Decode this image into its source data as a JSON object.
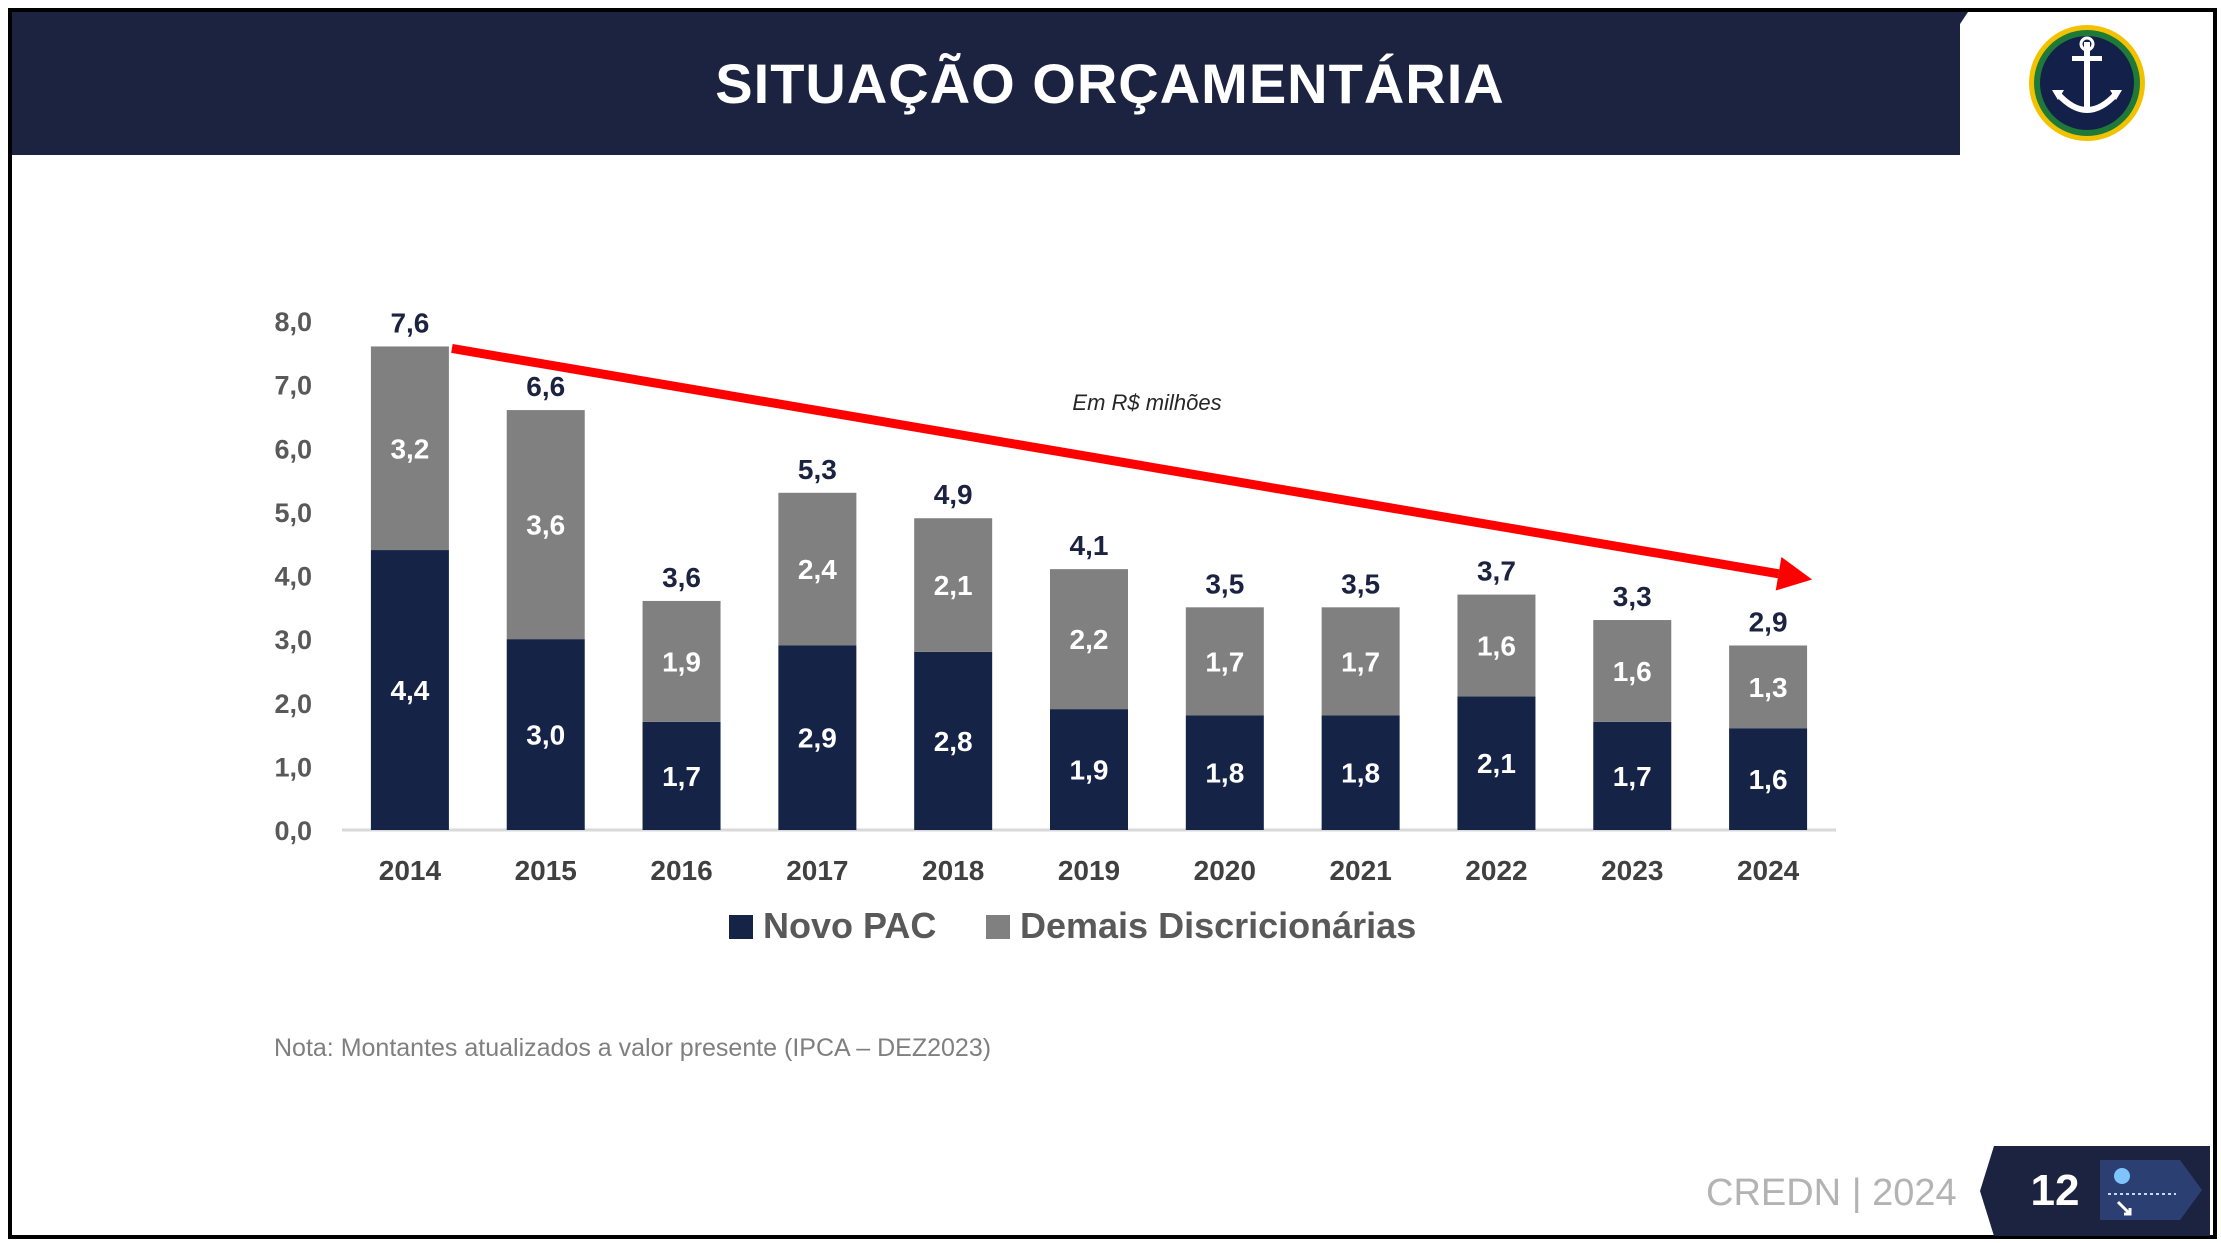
{
  "header": {
    "title": "SITUAÇÃO ORÇAMENTÁRIA"
  },
  "logo": {
    "icon": "anchor-emblem-icon",
    "ring_color": "#1f7a3a",
    "accent_color": "#f2c200"
  },
  "chart_data": {
    "type": "bar",
    "stacked": true,
    "title": "",
    "xlabel": "",
    "ylabel": "",
    "annotation": "Em R$ milhões",
    "categories": [
      "2014",
      "2015",
      "2016",
      "2017",
      "2018",
      "2019",
      "2020",
      "2021",
      "2022",
      "2023",
      "2024"
    ],
    "series": [
      {
        "name": "Novo PAC",
        "color": "#152347",
        "values": [
          4.4,
          3.0,
          1.7,
          2.9,
          2.8,
          1.9,
          1.8,
          1.8,
          2.1,
          1.7,
          1.6
        ],
        "labels": [
          "4,4",
          "3,0",
          "1,7",
          "2,9",
          "2,8",
          "1,9",
          "1,8",
          "1,8",
          "2,1",
          "1,7",
          "1,6"
        ]
      },
      {
        "name": "Demais Discricionárias",
        "color": "#808080",
        "values": [
          3.2,
          3.6,
          1.9,
          2.4,
          2.1,
          2.2,
          1.7,
          1.7,
          1.6,
          1.6,
          1.3
        ],
        "labels": [
          "3,2",
          "3,6",
          "1,9",
          "2,4",
          "2,1",
          "2,2",
          "1,7",
          "1,7",
          "1,6",
          "1,6",
          "1,3"
        ]
      }
    ],
    "totals": [
      7.6,
      6.6,
      3.6,
      5.3,
      4.9,
      4.1,
      3.5,
      3.5,
      3.7,
      3.3,
      2.9
    ],
    "total_labels": [
      "7,6",
      "6,6",
      "3,6",
      "5,3",
      "4,9",
      "4,1",
      "3,5",
      "3,5",
      "3,7",
      "3,3",
      "2,9"
    ],
    "ylim": [
      0,
      8
    ],
    "yticks": [
      0,
      1,
      2,
      3,
      4,
      5,
      6,
      7,
      8
    ],
    "ytick_labels": [
      "0,0",
      "1,0",
      "2,0",
      "3,0",
      "4,0",
      "5,0",
      "6,0",
      "7,0",
      "8,0"
    ],
    "grid": false,
    "legend": "bottom",
    "trend_arrow": {
      "color": "#ff0000",
      "direction": "decreasing"
    }
  },
  "note": "Nota: Montantes atualizados a valor presente (IPCA – DEZ2023)",
  "footer": {
    "org": "CREDN",
    "separator": "|",
    "year": "2024",
    "page": "12",
    "icon": "anchor-flag-icon"
  }
}
